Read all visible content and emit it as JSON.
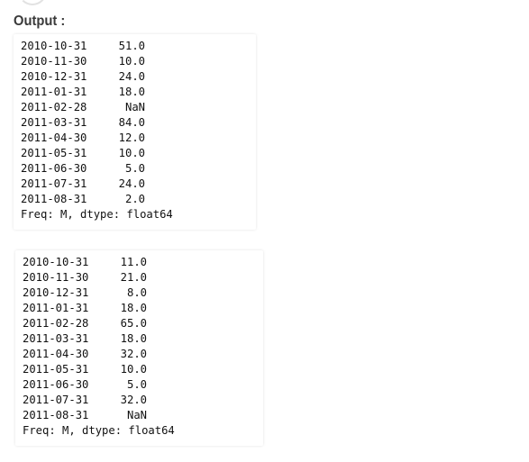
{
  "output": {
    "heading": "Output :",
    "blocks": [
      {
        "rows": [
          {
            "date": "2010-10-31",
            "value": "51.0"
          },
          {
            "date": "2010-11-30",
            "value": "10.0"
          },
          {
            "date": "2010-12-31",
            "value": "24.0"
          },
          {
            "date": "2011-01-31",
            "value": "18.0"
          },
          {
            "date": "2011-02-28",
            "value": "NaN"
          },
          {
            "date": "2011-03-31",
            "value": "84.0"
          },
          {
            "date": "2011-04-30",
            "value": "12.0"
          },
          {
            "date": "2011-05-31",
            "value": "10.0"
          },
          {
            "date": "2011-06-30",
            "value": "5.0"
          },
          {
            "date": "2011-07-31",
            "value": "24.0"
          },
          {
            "date": "2011-08-31",
            "value": "2.0"
          }
        ],
        "footer": "Freq: M, dtype: float64"
      },
      {
        "rows": [
          {
            "date": "2010-10-31",
            "value": "11.0"
          },
          {
            "date": "2010-11-30",
            "value": "21.0"
          },
          {
            "date": "2010-12-31",
            "value": "8.0"
          },
          {
            "date": "2011-01-31",
            "value": "18.0"
          },
          {
            "date": "2011-02-28",
            "value": "65.0"
          },
          {
            "date": "2011-03-31",
            "value": "18.0"
          },
          {
            "date": "2011-04-30",
            "value": "32.0"
          },
          {
            "date": "2011-05-31",
            "value": "10.0"
          },
          {
            "date": "2011-06-30",
            "value": "5.0"
          },
          {
            "date": "2011-07-31",
            "value": "32.0"
          },
          {
            "date": "2011-08-31",
            "value": "NaN"
          }
        ],
        "footer": "Freq: M, dtype: float64"
      }
    ]
  }
}
